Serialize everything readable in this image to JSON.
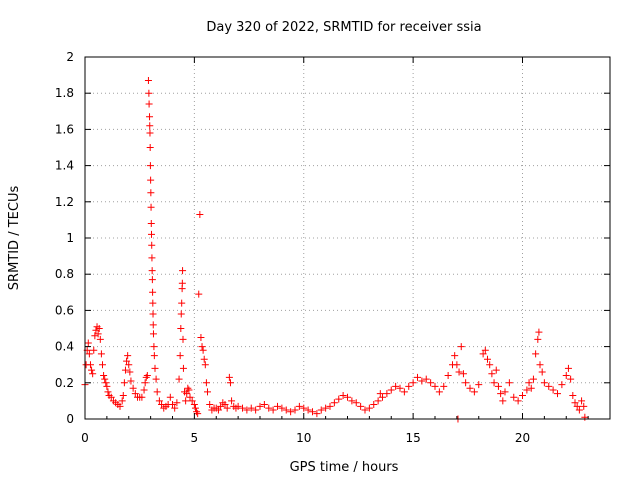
{
  "chart_data": {
    "type": "scatter",
    "title": "Day 320 of 2022, SRMTID for receiver ssia",
    "xlabel": "GPS time / hours",
    "ylabel": "SRMTID / TECUs",
    "xlim": [
      0,
      24
    ],
    "ylim": [
      0,
      2
    ],
    "x_ticks": [
      "0",
      "5",
      "10",
      "15",
      "20"
    ],
    "x_tick_values": [
      0,
      5,
      10,
      15,
      20
    ],
    "y_ticks": [
      "0",
      "0.2",
      "0.4",
      "0.6",
      "0.8",
      "1",
      "1.2",
      "1.4",
      "1.6",
      "1.8",
      "2"
    ],
    "y_tick_values": [
      0,
      0.2,
      0.4,
      0.6,
      0.8,
      1.0,
      1.2,
      1.4,
      1.6,
      1.8,
      2.0
    ],
    "grid": true,
    "marker": "plus",
    "marker_color": "#ff0000",
    "series": [
      {
        "name": "SRMTID",
        "points": [
          [
            0.0,
            0.19
          ],
          [
            0.05,
            0.3
          ],
          [
            0.1,
            0.38
          ],
          [
            0.15,
            0.42
          ],
          [
            0.2,
            0.36
          ],
          [
            0.25,
            0.3
          ],
          [
            0.3,
            0.27
          ],
          [
            0.35,
            0.25
          ],
          [
            0.4,
            0.38
          ],
          [
            0.45,
            0.46
          ],
          [
            0.5,
            0.49
          ],
          [
            0.55,
            0.51
          ],
          [
            0.6,
            0.47
          ],
          [
            0.65,
            0.5
          ],
          [
            0.7,
            0.44
          ],
          [
            0.75,
            0.36
          ],
          [
            0.8,
            0.3
          ],
          [
            0.85,
            0.24
          ],
          [
            0.9,
            0.22
          ],
          [
            0.95,
            0.2
          ],
          [
            1.0,
            0.18
          ],
          [
            1.05,
            0.15
          ],
          [
            1.1,
            0.13
          ],
          [
            1.2,
            0.12
          ],
          [
            1.3,
            0.1
          ],
          [
            1.4,
            0.09
          ],
          [
            1.5,
            0.08
          ],
          [
            1.6,
            0.07
          ],
          [
            1.7,
            0.1
          ],
          [
            1.75,
            0.13
          ],
          [
            1.8,
            0.2
          ],
          [
            1.85,
            0.27
          ],
          [
            1.9,
            0.32
          ],
          [
            1.95,
            0.35
          ],
          [
            2.0,
            0.3
          ],
          [
            2.05,
            0.26
          ],
          [
            2.1,
            0.21
          ],
          [
            2.2,
            0.17
          ],
          [
            2.3,
            0.14
          ],
          [
            2.4,
            0.12
          ],
          [
            2.5,
            0.12
          ],
          [
            2.6,
            0.12
          ],
          [
            2.7,
            0.16
          ],
          [
            2.75,
            0.2
          ],
          [
            2.8,
            0.23
          ],
          [
            2.85,
            0.24
          ],
          [
            2.9,
            1.87
          ],
          [
            2.92,
            1.8
          ],
          [
            2.93,
            1.74
          ],
          [
            2.95,
            1.67
          ],
          [
            2.96,
            1.62
          ],
          [
            2.97,
            1.58
          ],
          [
            2.98,
            1.5
          ],
          [
            2.99,
            1.4
          ],
          [
            3.0,
            1.32
          ],
          [
            3.01,
            1.25
          ],
          [
            3.02,
            1.17
          ],
          [
            3.03,
            1.08
          ],
          [
            3.04,
            1.02
          ],
          [
            3.05,
            0.96
          ],
          [
            3.06,
            0.89
          ],
          [
            3.07,
            0.82
          ],
          [
            3.08,
            0.77
          ],
          [
            3.09,
            0.7
          ],
          [
            3.1,
            0.64
          ],
          [
            3.11,
            0.58
          ],
          [
            3.12,
            0.52
          ],
          [
            3.13,
            0.47
          ],
          [
            3.15,
            0.4
          ],
          [
            3.17,
            0.35
          ],
          [
            3.2,
            0.28
          ],
          [
            3.25,
            0.22
          ],
          [
            3.3,
            0.15
          ],
          [
            3.4,
            0.1
          ],
          [
            3.5,
            0.08
          ],
          [
            3.6,
            0.06
          ],
          [
            3.7,
            0.07
          ],
          [
            3.8,
            0.08
          ],
          [
            3.9,
            0.12
          ],
          [
            4.0,
            0.08
          ],
          [
            4.1,
            0.06
          ],
          [
            4.2,
            0.09
          ],
          [
            4.3,
            0.22
          ],
          [
            4.35,
            0.35
          ],
          [
            4.38,
            0.5
          ],
          [
            4.4,
            0.58
          ],
          [
            4.42,
            0.64
          ],
          [
            4.44,
            0.72
          ],
          [
            4.45,
            0.75
          ],
          [
            4.46,
            0.82
          ],
          [
            4.48,
            0.44
          ],
          [
            4.5,
            0.28
          ],
          [
            4.55,
            0.15
          ],
          [
            4.6,
            0.1
          ],
          [
            4.65,
            0.14
          ],
          [
            4.7,
            0.17
          ],
          [
            4.75,
            0.16
          ],
          [
            4.8,
            0.12
          ],
          [
            4.9,
            0.1
          ],
          [
            5.0,
            0.08
          ],
          [
            5.05,
            0.06
          ],
          [
            5.1,
            0.04
          ],
          [
            5.15,
            0.03
          ],
          [
            5.2,
            0.69
          ],
          [
            5.25,
            1.13
          ],
          [
            5.3,
            0.45
          ],
          [
            5.35,
            0.4
          ],
          [
            5.4,
            0.38
          ],
          [
            5.45,
            0.33
          ],
          [
            5.5,
            0.3
          ],
          [
            5.55,
            0.2
          ],
          [
            5.6,
            0.15
          ],
          [
            5.7,
            0.08
          ],
          [
            5.8,
            0.05
          ],
          [
            5.9,
            0.06
          ],
          [
            6.0,
            0.06
          ],
          [
            6.1,
            0.05
          ],
          [
            6.2,
            0.07
          ],
          [
            6.3,
            0.09
          ],
          [
            6.4,
            0.08
          ],
          [
            6.5,
            0.06
          ],
          [
            6.6,
            0.23
          ],
          [
            6.65,
            0.2
          ],
          [
            6.7,
            0.1
          ],
          [
            6.8,
            0.07
          ],
          [
            6.9,
            0.06
          ],
          [
            7.0,
            0.07
          ],
          [
            7.2,
            0.06
          ],
          [
            7.4,
            0.05
          ],
          [
            7.6,
            0.06
          ],
          [
            7.8,
            0.05
          ],
          [
            8.0,
            0.07
          ],
          [
            8.2,
            0.08
          ],
          [
            8.4,
            0.06
          ],
          [
            8.6,
            0.05
          ],
          [
            8.8,
            0.07
          ],
          [
            9.0,
            0.06
          ],
          [
            9.2,
            0.05
          ],
          [
            9.4,
            0.04
          ],
          [
            9.6,
            0.05
          ],
          [
            9.8,
            0.07
          ],
          [
            10.0,
            0.06
          ],
          [
            10.2,
            0.05
          ],
          [
            10.4,
            0.04
          ],
          [
            10.6,
            0.03
          ],
          [
            10.8,
            0.05
          ],
          [
            11.0,
            0.06
          ],
          [
            11.2,
            0.07
          ],
          [
            11.4,
            0.09
          ],
          [
            11.6,
            0.11
          ],
          [
            11.8,
            0.13
          ],
          [
            12.0,
            0.12
          ],
          [
            12.2,
            0.1
          ],
          [
            12.4,
            0.09
          ],
          [
            12.6,
            0.07
          ],
          [
            12.8,
            0.05
          ],
          [
            13.0,
            0.06
          ],
          [
            13.2,
            0.08
          ],
          [
            13.4,
            0.1
          ],
          [
            13.5,
            0.14
          ],
          [
            13.6,
            0.12
          ],
          [
            13.8,
            0.14
          ],
          [
            14.0,
            0.16
          ],
          [
            14.2,
            0.18
          ],
          [
            14.4,
            0.17
          ],
          [
            14.6,
            0.15
          ],
          [
            14.8,
            0.18
          ],
          [
            15.0,
            0.2
          ],
          [
            15.2,
            0.23
          ],
          [
            15.4,
            0.21
          ],
          [
            15.6,
            0.22
          ],
          [
            15.8,
            0.2
          ],
          [
            16.0,
            0.18
          ],
          [
            16.2,
            0.15
          ],
          [
            16.4,
            0.18
          ],
          [
            16.6,
            0.24
          ],
          [
            16.8,
            0.3
          ],
          [
            16.9,
            0.35
          ],
          [
            17.0,
            0.3
          ],
          [
            17.05,
            0.0
          ],
          [
            17.1,
            0.26
          ],
          [
            17.2,
            0.4
          ],
          [
            17.3,
            0.25
          ],
          [
            17.4,
            0.2
          ],
          [
            17.6,
            0.17
          ],
          [
            17.8,
            0.15
          ],
          [
            18.0,
            0.19
          ],
          [
            18.2,
            0.36
          ],
          [
            18.3,
            0.38
          ],
          [
            18.4,
            0.33
          ],
          [
            18.5,
            0.3
          ],
          [
            18.6,
            0.25
          ],
          [
            18.7,
            0.2
          ],
          [
            18.8,
            0.27
          ],
          [
            18.9,
            0.18
          ],
          [
            19.0,
            0.14
          ],
          [
            19.1,
            0.1
          ],
          [
            19.2,
            0.15
          ],
          [
            19.4,
            0.2
          ],
          [
            19.6,
            0.12
          ],
          [
            19.8,
            0.1
          ],
          [
            20.0,
            0.13
          ],
          [
            20.2,
            0.16
          ],
          [
            20.3,
            0.2
          ],
          [
            20.4,
            0.17
          ],
          [
            20.5,
            0.22
          ],
          [
            20.6,
            0.36
          ],
          [
            20.7,
            0.44
          ],
          [
            20.75,
            0.48
          ],
          [
            20.8,
            0.3
          ],
          [
            20.9,
            0.26
          ],
          [
            21.0,
            0.2
          ],
          [
            21.2,
            0.18
          ],
          [
            21.4,
            0.16
          ],
          [
            21.6,
            0.14
          ],
          [
            21.8,
            0.19
          ],
          [
            22.0,
            0.24
          ],
          [
            22.1,
            0.28
          ],
          [
            22.2,
            0.22
          ],
          [
            22.3,
            0.13
          ],
          [
            22.4,
            0.09
          ],
          [
            22.5,
            0.07
          ],
          [
            22.6,
            0.05
          ],
          [
            22.7,
            0.1
          ],
          [
            22.8,
            0.07
          ],
          [
            22.85,
            0.01
          ]
        ]
      }
    ]
  }
}
